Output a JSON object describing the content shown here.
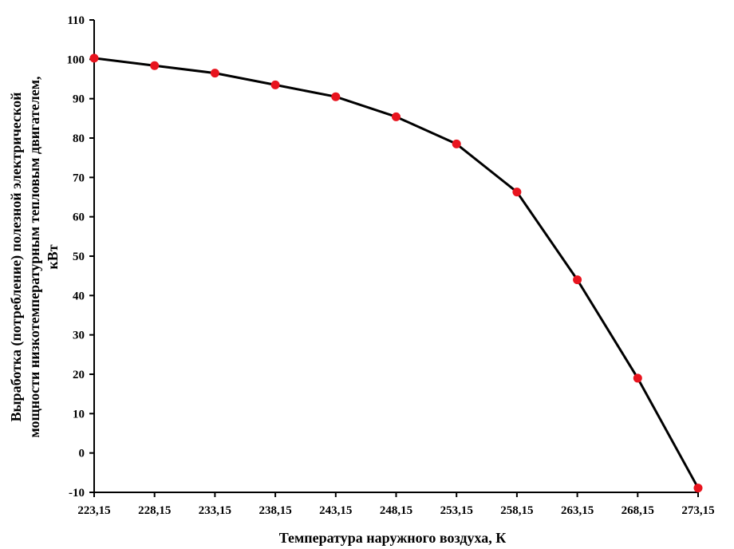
{
  "chart_data": {
    "type": "line",
    "xlabel": "Температура наружного воздуха, К",
    "ylabel_lines": [
      "Выработка (потребление) полезной электрической",
      "мощности низкотемпературным тепловым двигателем,",
      "кВт"
    ],
    "x": [
      223.15,
      228.15,
      233.15,
      238.15,
      243.15,
      248.15,
      253.15,
      258.15,
      263.15,
      268.15,
      273.15
    ],
    "x_tick_labels": [
      "223,15",
      "228,15",
      "233,15",
      "238,15",
      "243,15",
      "248,15",
      "253,15",
      "258,15",
      "263,15",
      "268,15",
      "273,15"
    ],
    "y_ticks": [
      -10,
      0,
      10,
      20,
      30,
      40,
      50,
      60,
      70,
      80,
      90,
      100,
      110
    ],
    "y_tick_labels": [
      "-10",
      "0",
      "10",
      "20",
      "30",
      "40",
      "50",
      "60",
      "70",
      "80",
      "90",
      "100",
      "110"
    ],
    "series": [
      {
        "values": [
          100.3,
          98.4,
          96.5,
          93.5,
          90.5,
          85.4,
          78.5,
          66.3,
          44.0,
          19.0,
          -8.9
        ],
        "line_color": "#000000",
        "marker_color": "#e8141e"
      }
    ],
    "xlim": [
      223.15,
      273.15
    ],
    "ylim": [
      -10,
      110
    ],
    "grid": false
  }
}
